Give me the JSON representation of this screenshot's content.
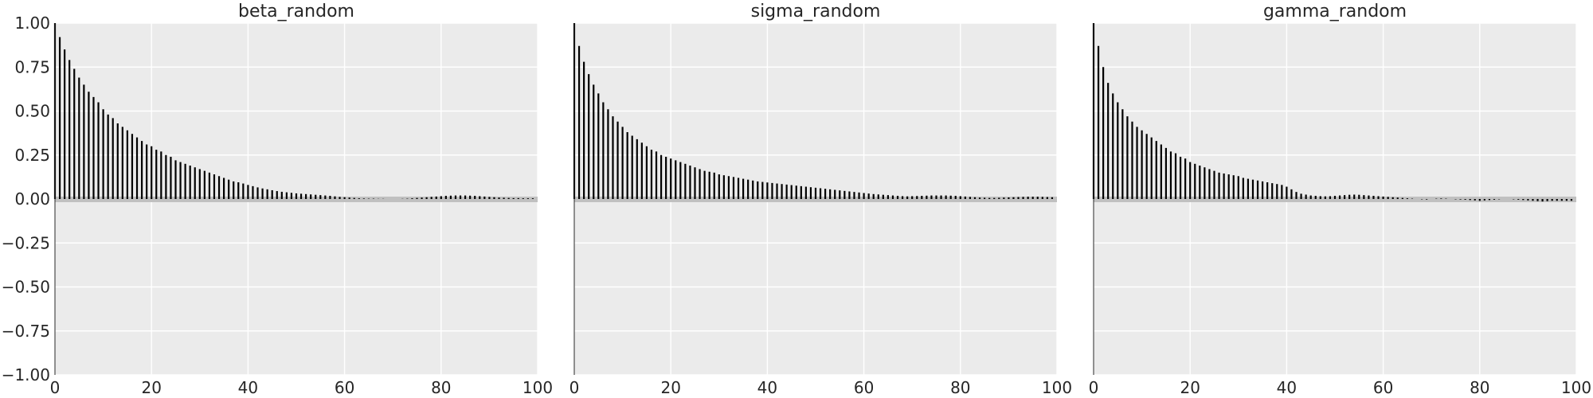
{
  "chart_data": [
    {
      "type": "bar",
      "title": "beta_random",
      "xlabel": "",
      "ylabel": "",
      "xlim": [
        0,
        100
      ],
      "ylim": [
        -1.0,
        1.0
      ],
      "grid": true,
      "xticks": [
        0,
        20,
        40,
        60,
        80,
        100
      ],
      "yticks": [
        1.0,
        0.75,
        0.5,
        0.25,
        0.0,
        -0.25,
        -0.5,
        -0.75,
        -1.0
      ],
      "ytick_labels": [
        "1.00",
        "0.75",
        "0.50",
        "0.25",
        "0.00",
        "−0.25",
        "−0.50",
        "−0.75",
        "−1.00"
      ],
      "show_y_tick_labels": true,
      "lags": [
        0,
        1,
        2,
        3,
        4,
        5,
        6,
        7,
        8,
        9,
        10,
        11,
        12,
        13,
        14,
        15,
        16,
        17,
        18,
        19,
        20,
        21,
        22,
        23,
        24,
        25,
        26,
        27,
        28,
        29,
        30,
        31,
        32,
        33,
        34,
        35,
        36,
        37,
        38,
        39,
        40,
        41,
        42,
        43,
        44,
        45,
        46,
        47,
        48,
        49,
        50,
        51,
        52,
        53,
        54,
        55,
        56,
        57,
        58,
        59,
        60,
        61,
        62,
        63,
        64,
        65,
        66,
        67,
        68,
        69,
        70,
        71,
        72,
        73,
        74,
        75,
        76,
        77,
        78,
        79,
        80,
        81,
        82,
        83,
        84,
        85,
        86,
        87,
        88,
        89,
        90,
        91,
        92,
        93,
        94,
        95,
        96,
        97,
        98,
        99
      ],
      "values": [
        1.0,
        0.92,
        0.85,
        0.79,
        0.74,
        0.69,
        0.65,
        0.61,
        0.58,
        0.55,
        0.51,
        0.48,
        0.46,
        0.43,
        0.41,
        0.39,
        0.37,
        0.35,
        0.33,
        0.31,
        0.3,
        0.28,
        0.27,
        0.25,
        0.24,
        0.22,
        0.21,
        0.2,
        0.19,
        0.18,
        0.17,
        0.16,
        0.15,
        0.14,
        0.13,
        0.12,
        0.11,
        0.1,
        0.095,
        0.088,
        0.08,
        0.073,
        0.066,
        0.06,
        0.055,
        0.05,
        0.045,
        0.041,
        0.038,
        0.035,
        0.032,
        0.03,
        0.028,
        0.026,
        0.024,
        0.022,
        0.02,
        0.018,
        0.015,
        0.012,
        0.01,
        0.008,
        0.006,
        0.004,
        0.003,
        0.002,
        0.002,
        0.001,
        0.001,
        0.0,
        0.0,
        0.0,
        0.001,
        0.002,
        0.004,
        0.006,
        0.008,
        0.01,
        0.012,
        0.014,
        0.016,
        0.018,
        0.019,
        0.02,
        0.02,
        0.02,
        0.019,
        0.018,
        0.016,
        0.014,
        0.012,
        0.01,
        0.008,
        0.007,
        0.006,
        0.005,
        0.005,
        0.004,
        0.004,
        0.004
      ]
    },
    {
      "type": "bar",
      "title": "sigma_random",
      "xlabel": "",
      "ylabel": "",
      "xlim": [
        0,
        100
      ],
      "ylim": [
        -1.0,
        1.0
      ],
      "grid": true,
      "xticks": [
        0,
        20,
        40,
        60,
        80,
        100
      ],
      "yticks": [
        1.0,
        0.75,
        0.5,
        0.25,
        0.0,
        -0.25,
        -0.5,
        -0.75,
        -1.0
      ],
      "ytick_labels": [
        "1.00",
        "0.75",
        "0.50",
        "0.25",
        "0.00",
        "−0.25",
        "−0.50",
        "−0.75",
        "−1.00"
      ],
      "show_y_tick_labels": false,
      "lags": [
        0,
        1,
        2,
        3,
        4,
        5,
        6,
        7,
        8,
        9,
        10,
        11,
        12,
        13,
        14,
        15,
        16,
        17,
        18,
        19,
        20,
        21,
        22,
        23,
        24,
        25,
        26,
        27,
        28,
        29,
        30,
        31,
        32,
        33,
        34,
        35,
        36,
        37,
        38,
        39,
        40,
        41,
        42,
        43,
        44,
        45,
        46,
        47,
        48,
        49,
        50,
        51,
        52,
        53,
        54,
        55,
        56,
        57,
        58,
        59,
        60,
        61,
        62,
        63,
        64,
        65,
        66,
        67,
        68,
        69,
        70,
        71,
        72,
        73,
        74,
        75,
        76,
        77,
        78,
        79,
        80,
        81,
        82,
        83,
        84,
        85,
        86,
        87,
        88,
        89,
        90,
        91,
        92,
        93,
        94,
        95,
        96,
        97,
        98,
        99
      ],
      "values": [
        1.0,
        0.87,
        0.78,
        0.71,
        0.65,
        0.6,
        0.55,
        0.51,
        0.47,
        0.44,
        0.41,
        0.38,
        0.36,
        0.34,
        0.32,
        0.3,
        0.28,
        0.27,
        0.25,
        0.24,
        0.23,
        0.22,
        0.21,
        0.2,
        0.19,
        0.18,
        0.17,
        0.16,
        0.155,
        0.15,
        0.14,
        0.135,
        0.13,
        0.125,
        0.12,
        0.115,
        0.11,
        0.105,
        0.1,
        0.097,
        0.094,
        0.091,
        0.088,
        0.085,
        0.082,
        0.079,
        0.076,
        0.073,
        0.07,
        0.067,
        0.064,
        0.061,
        0.058,
        0.055,
        0.052,
        0.049,
        0.046,
        0.043,
        0.04,
        0.037,
        0.034,
        0.031,
        0.028,
        0.026,
        0.024,
        0.022,
        0.02,
        0.018,
        0.016,
        0.015,
        0.016,
        0.017,
        0.018,
        0.019,
        0.02,
        0.02,
        0.02,
        0.02,
        0.019,
        0.018,
        0.016,
        0.014,
        0.012,
        0.01,
        0.008,
        0.007,
        0.006,
        0.006,
        0.007,
        0.008,
        0.009,
        0.01,
        0.011,
        0.012,
        0.013,
        0.013,
        0.013,
        0.012,
        0.011,
        0.01
      ]
    },
    {
      "type": "bar",
      "title": "gamma_random",
      "xlabel": "",
      "ylabel": "",
      "xlim": [
        0,
        100
      ],
      "ylim": [
        -1.0,
        1.0
      ],
      "grid": true,
      "xticks": [
        0,
        20,
        40,
        60,
        80,
        100
      ],
      "yticks": [
        1.0,
        0.75,
        0.5,
        0.25,
        0.0,
        -0.25,
        -0.5,
        -0.75,
        -1.0
      ],
      "ytick_labels": [
        "1.00",
        "0.75",
        "0.50",
        "0.25",
        "0.00",
        "−0.25",
        "−0.50",
        "−0.75",
        "−1.00"
      ],
      "show_y_tick_labels": false,
      "lags": [
        0,
        1,
        2,
        3,
        4,
        5,
        6,
        7,
        8,
        9,
        10,
        11,
        12,
        13,
        14,
        15,
        16,
        17,
        18,
        19,
        20,
        21,
        22,
        23,
        24,
        25,
        26,
        27,
        28,
        29,
        30,
        31,
        32,
        33,
        34,
        35,
        36,
        37,
        38,
        39,
        40,
        41,
        42,
        43,
        44,
        45,
        46,
        47,
        48,
        49,
        50,
        51,
        52,
        53,
        54,
        55,
        56,
        57,
        58,
        59,
        60,
        61,
        62,
        63,
        64,
        65,
        66,
        67,
        68,
        69,
        70,
        71,
        72,
        73,
        74,
        75,
        76,
        77,
        78,
        79,
        80,
        81,
        82,
        83,
        84,
        85,
        86,
        87,
        88,
        89,
        90,
        91,
        92,
        93,
        94,
        95,
        96,
        97,
        98,
        99
      ],
      "values": [
        1.0,
        0.87,
        0.75,
        0.66,
        0.6,
        0.55,
        0.51,
        0.47,
        0.44,
        0.41,
        0.39,
        0.37,
        0.35,
        0.33,
        0.31,
        0.29,
        0.27,
        0.26,
        0.24,
        0.23,
        0.21,
        0.2,
        0.19,
        0.18,
        0.17,
        0.16,
        0.15,
        0.145,
        0.14,
        0.135,
        0.13,
        0.12,
        0.115,
        0.11,
        0.105,
        0.1,
        0.095,
        0.09,
        0.085,
        0.08,
        0.07,
        0.055,
        0.04,
        0.03,
        0.025,
        0.02,
        0.018,
        0.016,
        0.015,
        0.016,
        0.018,
        0.02,
        0.022,
        0.024,
        0.025,
        0.024,
        0.022,
        0.02,
        0.018,
        0.016,
        0.014,
        0.012,
        0.01,
        0.008,
        0.006,
        0.004,
        0.002,
        0.0,
        -0.002,
        -0.003,
        0.0,
        0.002,
        0.003,
        0.002,
        0.0,
        -0.002,
        -0.003,
        -0.004,
        -0.006,
        -0.008,
        -0.01,
        -0.008,
        -0.006,
        -0.004,
        -0.002,
        0.0,
        0.0,
        -0.002,
        -0.004,
        -0.006,
        -0.008,
        -0.01,
        -0.012,
        -0.014,
        -0.012,
        -0.01,
        -0.01,
        -0.01,
        -0.01,
        -0.01
      ]
    }
  ]
}
